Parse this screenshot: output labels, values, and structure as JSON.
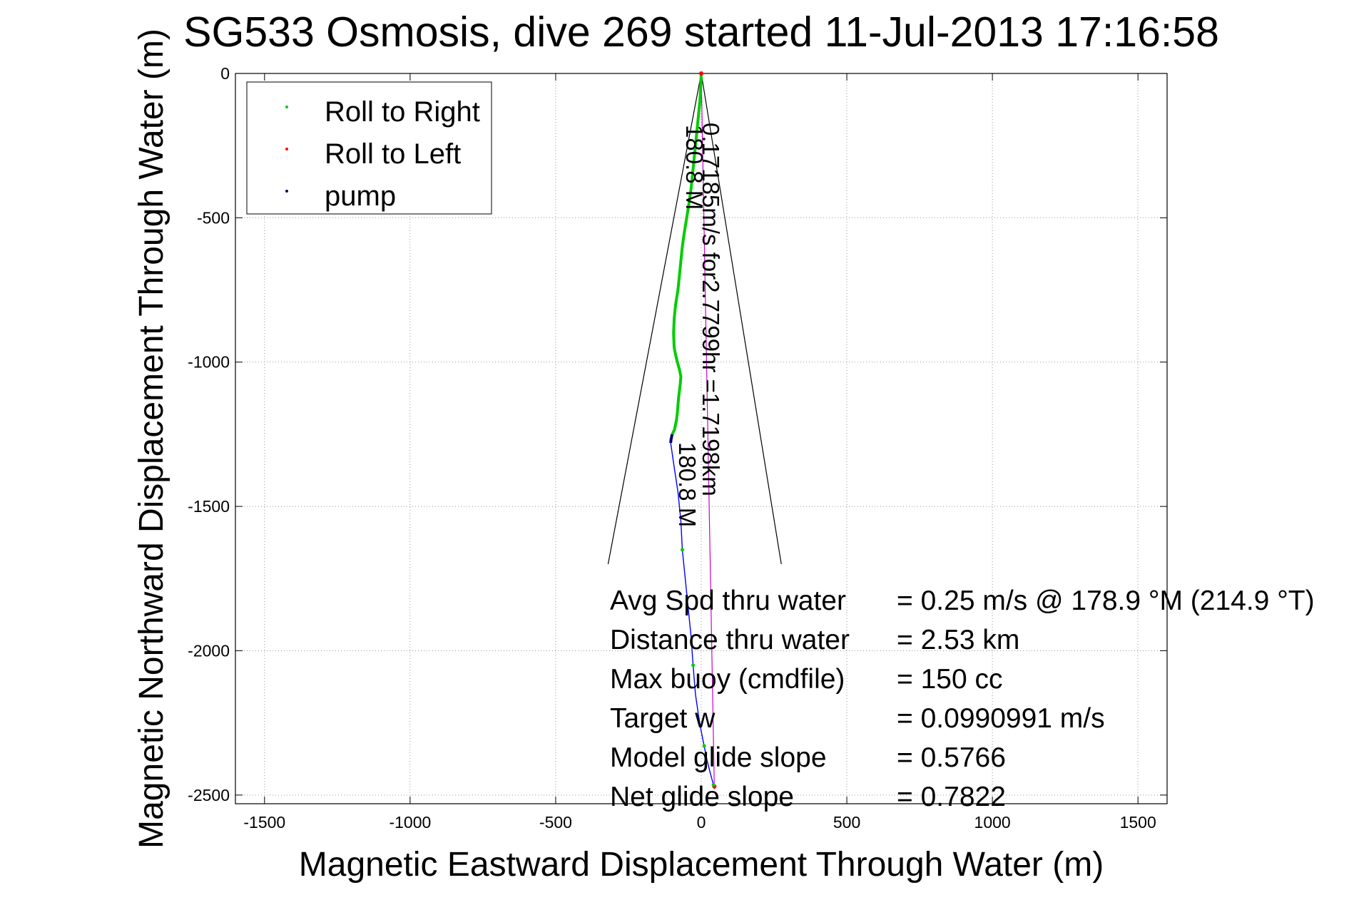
{
  "chart_data": {
    "type": "line",
    "title": "SG533 Osmosis, dive 269 started 11-Jul-2013 17:16:58",
    "xlabel": "Magnetic Eastward Displacement Through Water (m)",
    "ylabel": "Magnetic Northward Displacement Through Water (m)",
    "xlim": [
      -1600,
      1600
    ],
    "ylim": [
      -2530,
      0
    ],
    "xticks": [
      -1500,
      -1000,
      -500,
      0,
      500,
      1000,
      1500
    ],
    "xtick_labels": [
      "-1500",
      "-1000",
      "-500",
      "0",
      "500",
      "1000",
      "1500"
    ],
    "yticks": [
      0,
      -500,
      -1000,
      -1500,
      -2000,
      -2500
    ],
    "ytick_labels": [
      "0",
      "-500",
      "-1000",
      "-1500",
      "-2000",
      "-2500"
    ],
    "grid": true,
    "legend_position": "top-left",
    "legend": [
      "Roll to Right",
      "Roll to Left",
      "pump"
    ],
    "colors": {
      "roll_right": "#00cc00",
      "roll_left": "#ff0000",
      "pump": "#000066",
      "track": "#0000ff",
      "predicted": "#cc00cc",
      "cone": "#000000"
    },
    "series": [
      {
        "name": "Roll to Right",
        "x": [
          0,
          -2,
          -5,
          -10,
          -15,
          -20,
          -25,
          -30,
          -35,
          -42,
          -50,
          -58,
          -65,
          -70,
          -75,
          -80,
          -88,
          -93,
          -95,
          -93,
          -88,
          -82,
          -75,
          -70,
          -72,
          -75,
          -78,
          -80,
          -82,
          -85,
          -88,
          -90,
          -92,
          -95,
          -97,
          -100
        ],
        "y": [
          0,
          -50,
          -100,
          -150,
          -200,
          -250,
          -300,
          -350,
          -400,
          -450,
          -500,
          -550,
          -600,
          -650,
          -700,
          -750,
          -800,
          -850,
          -900,
          -950,
          -975,
          -1000,
          -1025,
          -1050,
          -1075,
          -1100,
          -1125,
          -1150,
          -1175,
          -1200,
          -1215,
          -1225,
          -1235,
          -1240,
          -1245,
          -1250
        ]
      },
      {
        "name": "Roll to Left",
        "x": [
          0,
          45
        ],
        "y": [
          0,
          -2470
        ]
      },
      {
        "name": "pump",
        "x": [
          -100,
          -102,
          -104,
          -105
        ],
        "y": [
          -1250,
          -1260,
          -1270,
          -1280
        ]
      },
      {
        "name": "track",
        "x": [
          -105,
          -95,
          -80,
          -70,
          -65,
          -55,
          -45,
          -35,
          -28,
          -20,
          -10,
          0,
          10,
          20,
          30,
          38,
          42,
          45
        ],
        "y": [
          -1280,
          -1350,
          -1450,
          -1550,
          -1650,
          -1750,
          -1850,
          -1950,
          -2050,
          -2150,
          -2220,
          -2280,
          -2330,
          -2380,
          -2420,
          -2450,
          -2465,
          -2475
        ]
      },
      {
        "name": "predicted",
        "x": [
          0,
          45
        ],
        "y": [
          0,
          -2480
        ]
      },
      {
        "name": "cone-left",
        "x": [
          0,
          -320
        ],
        "y": [
          0,
          -1700
        ]
      },
      {
        "name": "cone-right",
        "x": [
          0,
          275
        ],
        "y": [
          0,
          -1700
        ]
      }
    ],
    "annotations": {
      "heading_top": "180.8 M",
      "heading_bottom": "180.8 M",
      "leg": "0.17185m/s for2.7799hr =1.7198km"
    },
    "stats": [
      {
        "label": "Avg Spd thru water",
        "value": "=  0.25 m/s @ 178.9 °M (214.9 °T)"
      },
      {
        "label": "Distance thru water",
        "value": "=  2.53 km"
      },
      {
        "label": "Max buoy (cmdfile)",
        "value": "= 150 cc"
      },
      {
        "label": "Target w",
        "value": "= 0.0990991 m/s"
      },
      {
        "label": "Model glide slope",
        "value": "= 0.5766"
      },
      {
        "label": "Net glide slope",
        "value": "= 0.7822"
      }
    ]
  }
}
